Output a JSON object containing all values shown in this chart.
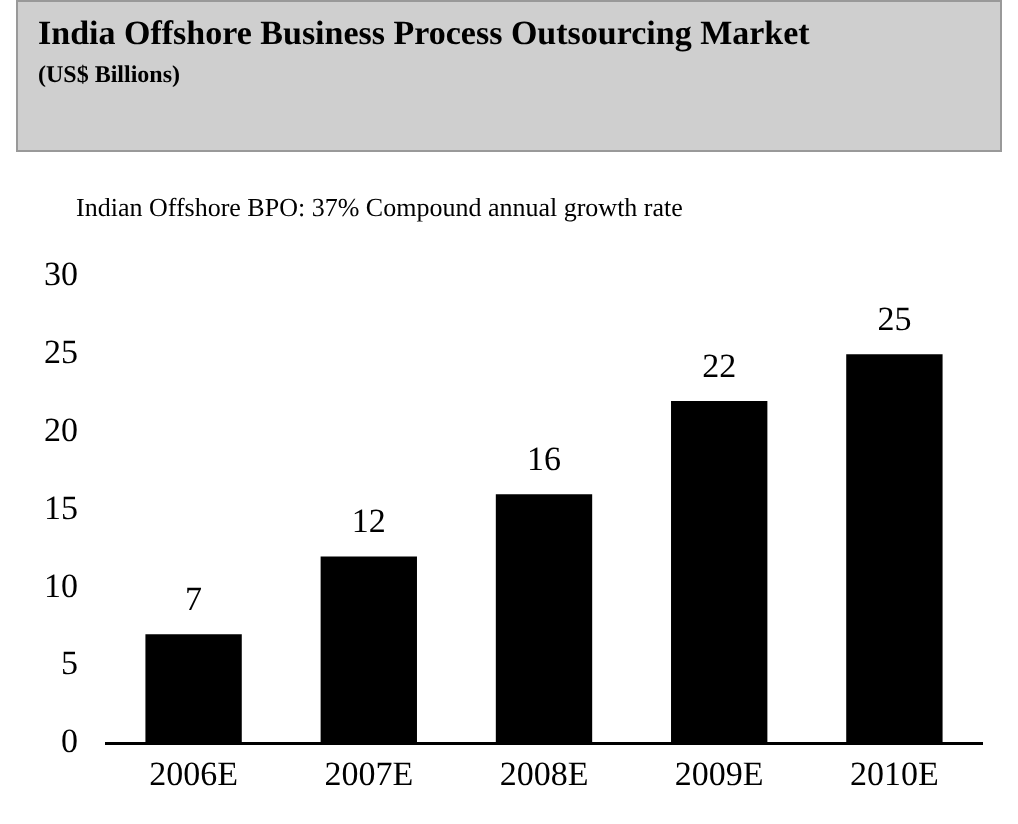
{
  "chart_data": {
    "type": "bar",
    "title": "India Offshore Business Process Outsourcing Market",
    "subtitle": "(US$ Billions)",
    "annotations": [
      "Indian Offshore BPO: 37% Compound annual growth rate"
    ],
    "categories": [
      "2006E",
      "2007E",
      "2008E",
      "2009E",
      "2010E"
    ],
    "values": [
      7,
      12,
      16,
      22,
      25
    ],
    "color": "#000000",
    "ylim": [
      0,
      30
    ],
    "yticks": [
      0,
      5,
      10,
      15,
      20,
      25,
      30
    ],
    "grid": false,
    "legend": false,
    "data_labels": true
  }
}
